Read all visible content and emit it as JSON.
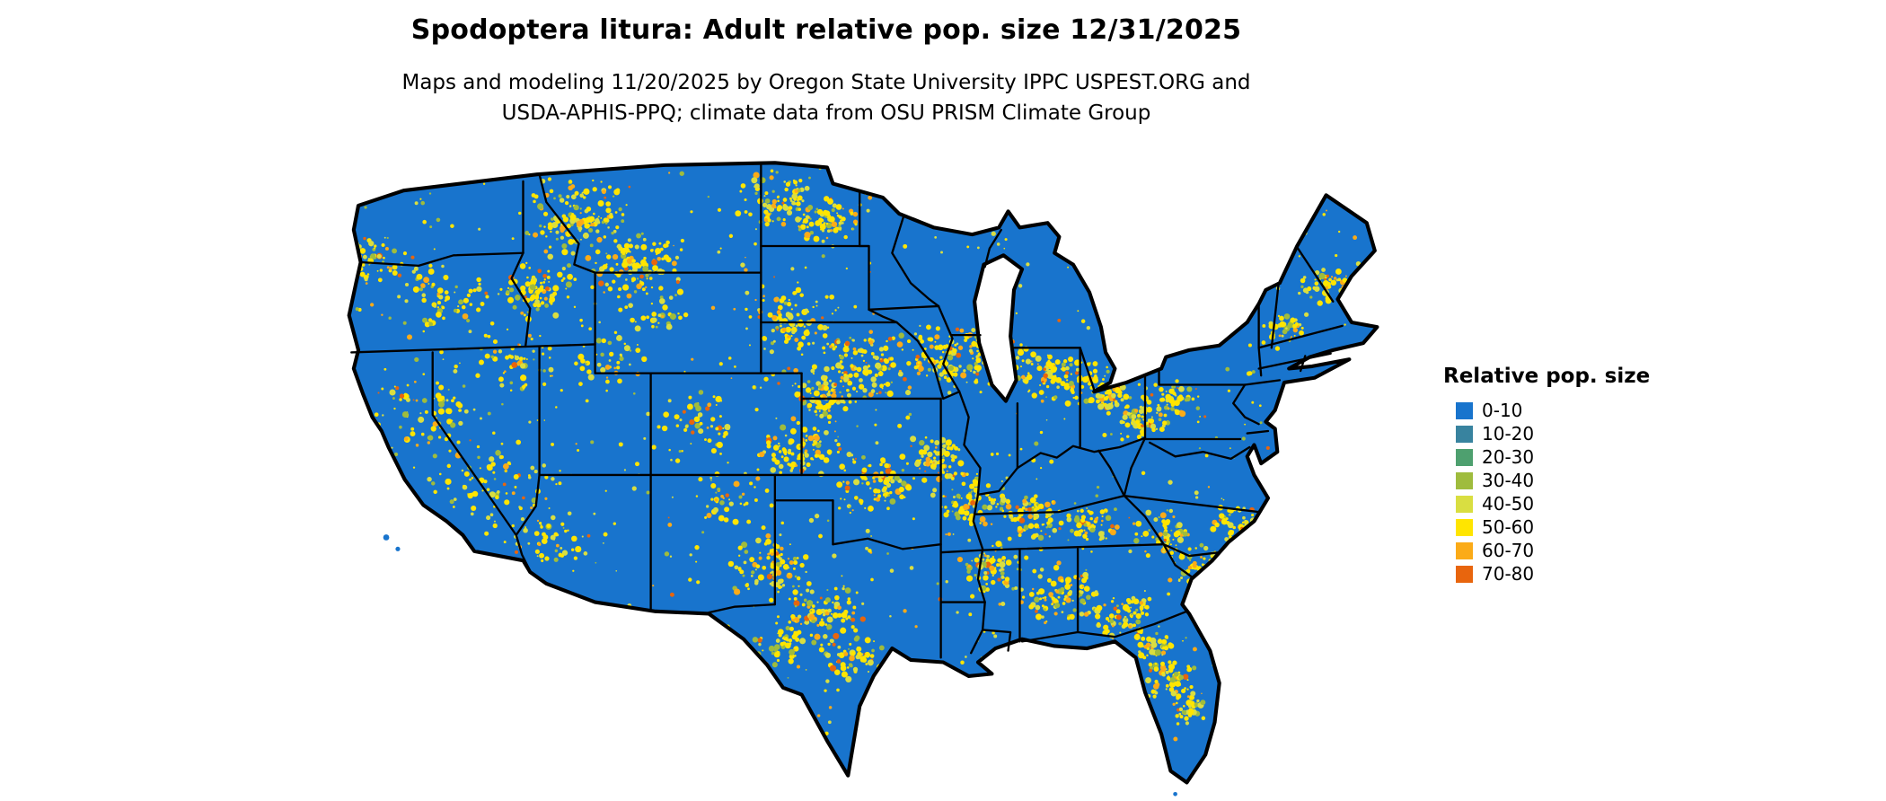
{
  "header": {
    "title": "Spodoptera litura: Adult relative pop. size 12/31/2025",
    "subtitle_line1": "Maps and modeling 11/20/2025 by Oregon State University IPPC USPEST.ORG and",
    "subtitle_line2": "USDA-APHIS-PPQ; climate data from OSU PRISM Climate Group"
  },
  "legend": {
    "title": "Relative pop. size",
    "items": [
      {
        "label": "0-10",
        "color": "#1874cd"
      },
      {
        "label": "10-20",
        "color": "#38839f"
      },
      {
        "label": "20-30",
        "color": "#4ea06f"
      },
      {
        "label": "30-40",
        "color": "#9fbc3d"
      },
      {
        "label": "40-50",
        "color": "#d9de41"
      },
      {
        "label": "50-60",
        "color": "#ffe500"
      },
      {
        "label": "60-70",
        "color": "#fbab18"
      },
      {
        "label": "70-80",
        "color": "#e8650d"
      }
    ]
  },
  "map": {
    "base_color": "#1874cd",
    "state_border_color": "#000000",
    "water_color": "#ffffff"
  }
}
